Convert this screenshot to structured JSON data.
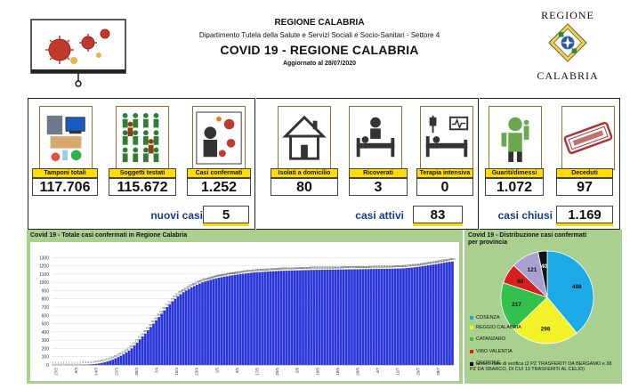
{
  "header": {
    "org": "REGIONE CALABRIA",
    "department": "Dipartimento Tutela della Salute e Servizi Sociali e Socio-Sanitari - Settore 4",
    "title": "COVID 19 - REGIONE CALABRIA",
    "updated": "Aggiornato al  28/07/2020",
    "logo_top": "REGIONE",
    "logo_bottom": "CALABRIA"
  },
  "stats": [
    {
      "label": "Tamponi totali",
      "value": "117.706",
      "icon": "lab-test-icon"
    },
    {
      "label": "Soggetti testati",
      "value": "115.672",
      "icon": "people-grid-icon"
    },
    {
      "label": "Casi confermati",
      "value": "1.252",
      "icon": "confirmed-case-icon"
    },
    {
      "label": "Isolati a domicilio",
      "value": "80",
      "icon": "home-isolation-icon"
    },
    {
      "label": "Ricoverati",
      "value": "3",
      "icon": "hospital-bed-icon"
    },
    {
      "label": "Terapia intensiva",
      "value": "0",
      "icon": "intensive-care-icon"
    },
    {
      "label": "Guariti/dimessi",
      "value": "1.072",
      "icon": "recovered-icon"
    },
    {
      "label": "Deceduti",
      "value": "97",
      "icon": "deceased-stamp-icon"
    }
  ],
  "summary": {
    "new_cases_label": "nuovi casi",
    "new_cases_value": "5",
    "active_label": "casi attivi",
    "active_value": "83",
    "closed_label": "casi chiusi",
    "closed_value": "1.169"
  },
  "colors": {
    "label_bg": "#ffdc00",
    "summary_text": "#1a3a8f",
    "chart_bg": "#a9d08e",
    "bar_fill": "#2b36d9"
  },
  "chart_data": [
    {
      "type": "bar",
      "title": "Covid 19 - Totale casi confermati in Regione Calabria",
      "xlabel": "",
      "ylabel": "",
      "ylim": [
        0,
        1400
      ],
      "yticks": [
        0,
        100,
        200,
        300,
        400,
        500,
        600,
        700,
        800,
        900,
        1000,
        1100,
        1200,
        1300
      ],
      "grid": true,
      "x_ticks": [
        "27/2",
        "6/3",
        "14/3",
        "22/3",
        "30/3",
        "7/4",
        "15/4",
        "23/4",
        "1/5",
        "9/5",
        "17/5",
        "25/5",
        "2/6",
        "10/6",
        "18/6",
        "26/6",
        "4/7",
        "12/7",
        "20/7",
        "28/7"
      ],
      "x_start": "2020-02-27",
      "x_end": "2020-07-28",
      "values": [
        1,
        1,
        1,
        1,
        1,
        1,
        1,
        1,
        1,
        1,
        2,
        3,
        4,
        6,
        8,
        10,
        14,
        19,
        25,
        33,
        42,
        53,
        66,
        80,
        95,
        112,
        130,
        150,
        172,
        200,
        235,
        270,
        310,
        345,
        380,
        420,
        460,
        500,
        540,
        580,
        620,
        660,
        700,
        735,
        770,
        800,
        830,
        855,
        880,
        900,
        920,
        940,
        955,
        970,
        985,
        1000,
        1010,
        1020,
        1030,
        1040,
        1048,
        1055,
        1062,
        1068,
        1074,
        1080,
        1085,
        1090,
        1095,
        1100,
        1104,
        1108,
        1112,
        1116,
        1120,
        1122,
        1124,
        1126,
        1128,
        1130,
        1132,
        1134,
        1136,
        1138,
        1139,
        1140,
        1141,
        1142,
        1143,
        1144,
        1145,
        1146,
        1147,
        1148,
        1149,
        1150,
        1150,
        1151,
        1151,
        1152,
        1152,
        1153,
        1153,
        1154,
        1154,
        1155,
        1155,
        1156,
        1156,
        1157,
        1157,
        1158,
        1158,
        1159,
        1159,
        1160,
        1160,
        1161,
        1161,
        1162,
        1162,
        1163,
        1163,
        1164,
        1164,
        1165,
        1166,
        1167,
        1168,
        1170,
        1172,
        1175,
        1178,
        1182,
        1186,
        1190,
        1195,
        1200,
        1205,
        1210,
        1215,
        1220,
        1226,
        1232,
        1238,
        1244,
        1247,
        1252
      ]
    },
    {
      "type": "pie",
      "title": "Covid 19 - Distribuzione casi confermati per provincia",
      "values": [
        488,
        298,
        217,
        88,
        121,
        40
      ],
      "labels": [
        "COSENZA",
        "REGGIO CALABRIA",
        "CATANZARO",
        "VIBO VALENTIA",
        "CROTONE",
        "altro/in fase di verifica (2 PZ TRASFERITI DA BERGAMO e 38 PZ DA SBARCO, DI CUI 13 TRASFERITI AL CELIO)"
      ],
      "colors": [
        "#1ba9e8",
        "#f2f22a",
        "#33c04c",
        "#d81f1f",
        "#a8a0d0",
        "#111111"
      ],
      "legend_position": "bottom"
    }
  ]
}
